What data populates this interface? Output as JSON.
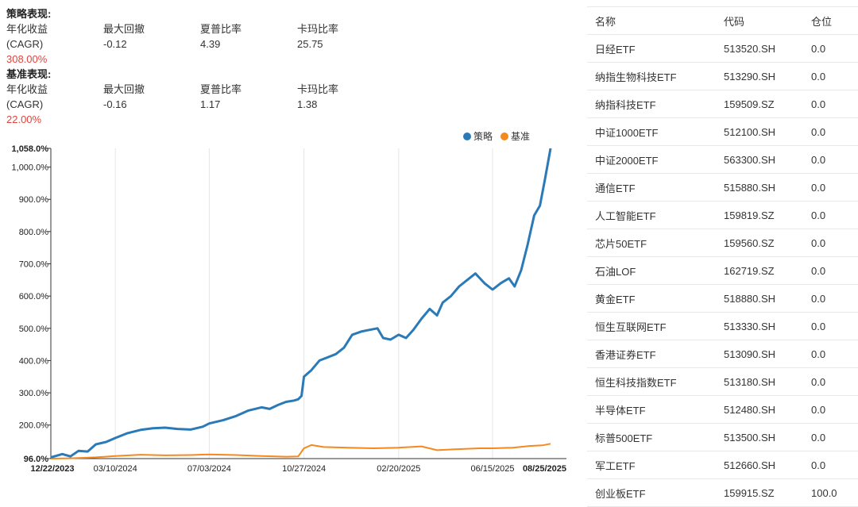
{
  "metrics": {
    "strategy_title": "策略表现:",
    "benchmark_title": "基准表现:",
    "headers": [
      "年化收益",
      "最大回撤",
      "夏普比率",
      "卡玛比率"
    ],
    "sub_label": "(CAGR)",
    "strategy": {
      "cagr": "308.00%",
      "max_drawdown": "-0.12",
      "sharpe": "4.39",
      "calmar": "25.75"
    },
    "benchmark": {
      "cagr": "22.00%",
      "max_drawdown": "-0.16",
      "sharpe": "1.17",
      "calmar": "1.38"
    }
  },
  "colors": {
    "strategy": "#2a7ab8",
    "benchmark": "#f5891f",
    "negative": "#e0443e"
  },
  "chart_data": {
    "type": "line",
    "legend": [
      "策略",
      "基准"
    ],
    "legend_position": "top-right",
    "x_ticks": [
      "12/22/2023",
      "03/10/2024",
      "07/03/2024",
      "10/27/2024",
      "02/20/2025",
      "06/15/2025",
      "08/25/2025"
    ],
    "y_ticks": [
      "96.0%",
      "200.0%",
      "300.0%",
      "400.0%",
      "500.0%",
      "600.0%",
      "700.0%",
      "800.0%",
      "900.0%",
      "1,000.0%",
      "1,058.0%"
    ],
    "y_range": [
      96,
      1058
    ],
    "x_range": [
      "2023-12-22",
      "2025-08-25"
    ],
    "grid": "vertical",
    "series": [
      {
        "name": "策略",
        "points": [
          [
            "2023-12-22",
            100
          ],
          [
            "2024-01-05",
            110
          ],
          [
            "2024-01-15",
            103
          ],
          [
            "2024-01-25",
            120
          ],
          [
            "2024-02-05",
            118
          ],
          [
            "2024-02-15",
            140
          ],
          [
            "2024-02-28",
            148
          ],
          [
            "2024-03-10",
            160
          ],
          [
            "2024-03-25",
            175
          ],
          [
            "2024-04-10",
            185
          ],
          [
            "2024-04-25",
            190
          ],
          [
            "2024-05-10",
            192
          ],
          [
            "2024-05-25",
            188
          ],
          [
            "2024-06-10",
            186
          ],
          [
            "2024-06-25",
            195
          ],
          [
            "2024-07-03",
            205
          ],
          [
            "2024-07-20",
            215
          ],
          [
            "2024-08-05",
            228
          ],
          [
            "2024-08-20",
            245
          ],
          [
            "2024-09-05",
            255
          ],
          [
            "2024-09-15",
            250
          ],
          [
            "2024-09-25",
            262
          ],
          [
            "2024-10-05",
            272
          ],
          [
            "2024-10-15",
            276
          ],
          [
            "2024-10-20",
            280
          ],
          [
            "2024-10-24",
            290
          ],
          [
            "2024-10-27",
            350
          ],
          [
            "2024-11-05",
            370
          ],
          [
            "2024-11-15",
            400
          ],
          [
            "2024-11-25",
            410
          ],
          [
            "2024-12-05",
            420
          ],
          [
            "2024-12-15",
            440
          ],
          [
            "2024-12-25",
            480
          ],
          [
            "2025-01-05",
            490
          ],
          [
            "2025-01-15",
            495
          ],
          [
            "2025-01-25",
            500
          ],
          [
            "2025-02-01",
            470
          ],
          [
            "2025-02-10",
            465
          ],
          [
            "2025-02-20",
            480
          ],
          [
            "2025-03-01",
            470
          ],
          [
            "2025-03-10",
            495
          ],
          [
            "2025-03-20",
            530
          ],
          [
            "2025-03-30",
            560
          ],
          [
            "2025-04-08",
            540
          ],
          [
            "2025-04-15",
            580
          ],
          [
            "2025-04-25",
            600
          ],
          [
            "2025-05-05",
            630
          ],
          [
            "2025-05-15",
            650
          ],
          [
            "2025-05-25",
            670
          ],
          [
            "2025-06-05",
            640
          ],
          [
            "2025-06-15",
            620
          ],
          [
            "2025-06-25",
            640
          ],
          [
            "2025-07-05",
            655
          ],
          [
            "2025-07-12",
            630
          ],
          [
            "2025-07-20",
            680
          ],
          [
            "2025-07-28",
            760
          ],
          [
            "2025-08-05",
            850
          ],
          [
            "2025-08-12",
            880
          ],
          [
            "2025-08-18",
            960
          ],
          [
            "2025-08-25",
            1058
          ]
        ]
      },
      {
        "name": "基准",
        "points": [
          [
            "2023-12-22",
            96
          ],
          [
            "2024-01-15",
            97
          ],
          [
            "2024-02-15",
            100
          ],
          [
            "2024-03-10",
            104
          ],
          [
            "2024-04-10",
            108
          ],
          [
            "2024-05-10",
            106
          ],
          [
            "2024-06-10",
            107
          ],
          [
            "2024-07-03",
            109
          ],
          [
            "2024-08-05",
            107
          ],
          [
            "2024-09-05",
            104
          ],
          [
            "2024-10-05",
            102
          ],
          [
            "2024-10-20",
            103
          ],
          [
            "2024-10-27",
            128
          ],
          [
            "2024-11-05",
            138
          ],
          [
            "2024-11-20",
            132
          ],
          [
            "2024-12-20",
            130
          ],
          [
            "2025-01-20",
            128
          ],
          [
            "2025-02-20",
            130
          ],
          [
            "2025-03-20",
            134
          ],
          [
            "2025-04-08",
            122
          ],
          [
            "2025-04-30",
            125
          ],
          [
            "2025-05-30",
            128
          ],
          [
            "2025-06-15",
            128
          ],
          [
            "2025-07-10",
            130
          ],
          [
            "2025-07-30",
            135
          ],
          [
            "2025-08-15",
            137
          ],
          [
            "2025-08-25",
            142
          ]
        ]
      }
    ]
  },
  "table": {
    "headers": [
      "名称",
      "代码",
      "仓位"
    ],
    "rows": [
      [
        "日经ETF",
        "513520.SH",
        "0.0"
      ],
      [
        "纳指生物科技ETF",
        "513290.SH",
        "0.0"
      ],
      [
        "纳指科技ETF",
        "159509.SZ",
        "0.0"
      ],
      [
        "中证1000ETF",
        "512100.SH",
        "0.0"
      ],
      [
        "中证2000ETF",
        "563300.SH",
        "0.0"
      ],
      [
        "通信ETF",
        "515880.SH",
        "0.0"
      ],
      [
        "人工智能ETF",
        "159819.SZ",
        "0.0"
      ],
      [
        "芯片50ETF",
        "159560.SZ",
        "0.0"
      ],
      [
        "石油LOF",
        "162719.SZ",
        "0.0"
      ],
      [
        "黄金ETF",
        "518880.SH",
        "0.0"
      ],
      [
        "恒生互联网ETF",
        "513330.SH",
        "0.0"
      ],
      [
        "香港证券ETF",
        "513090.SH",
        "0.0"
      ],
      [
        "恒生科技指数ETF",
        "513180.SH",
        "0.0"
      ],
      [
        "半导体ETF",
        "512480.SH",
        "0.0"
      ],
      [
        "标普500ETF",
        "513500.SH",
        "0.0"
      ],
      [
        "军工ETF",
        "512660.SH",
        "0.0"
      ],
      [
        "创业板ETF",
        "159915.SZ",
        "100.0"
      ]
    ]
  }
}
